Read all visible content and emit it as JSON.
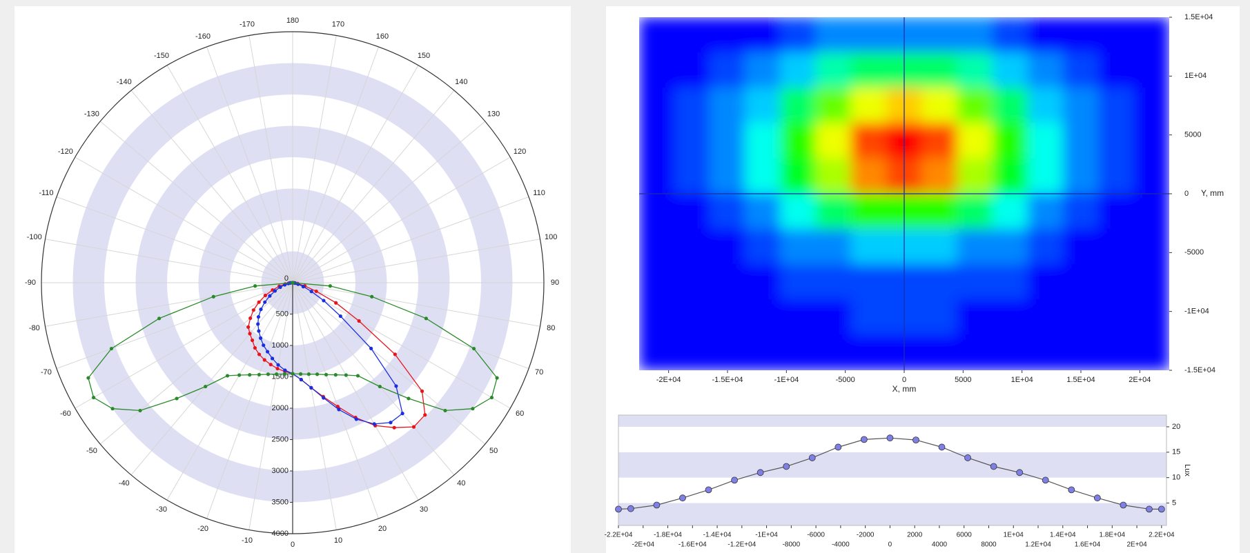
{
  "chart_data": [
    {
      "type": "polar",
      "x": [
        -90,
        -85,
        -80,
        -75,
        -70,
        -65,
        -60,
        -55,
        -50,
        -45,
        -40,
        -35,
        -30,
        -25,
        -20,
        -15,
        -10,
        -5,
        0,
        5,
        10,
        15,
        20,
        25,
        30,
        35,
        40,
        45,
        50,
        55,
        60,
        65,
        70,
        75,
        80,
        85,
        90
      ],
      "xticks": [
        -170,
        -160,
        -150,
        -140,
        -130,
        -120,
        -110,
        -100,
        -90,
        -80,
        -70,
        -60,
        -50,
        -40,
        -30,
        -20,
        -10,
        0,
        10,
        20,
        30,
        40,
        50,
        60,
        70,
        80,
        90,
        100,
        110,
        120,
        130,
        140,
        150,
        160,
        170,
        180
      ],
      "ylim": [
        0,
        4000
      ],
      "yticks": [
        0,
        500,
        1000,
        1500,
        2000,
        2500,
        3000,
        3500,
        4000
      ],
      "band_color": "#dedff3",
      "series": [
        {
          "color": "#e8141c",
          "values": [
            0,
            50,
            120,
            220,
            340,
            480,
            620,
            760,
            880,
            1000,
            1060,
            1120,
            1200,
            1260,
            1310,
            1350,
            1390,
            1420,
            1450,
            1550,
            1700,
            1880,
            2100,
            2370,
            2630,
            2820,
            3000,
            2980,
            2690,
            1990,
            1220,
            760,
            400,
            200,
            80,
            30,
            0
          ]
        },
        {
          "color": "#1a2ee0",
          "values": [
            0,
            30,
            70,
            130,
            210,
            310,
            420,
            540,
            660,
            770,
            860,
            940,
            1020,
            1100,
            1170,
            1250,
            1330,
            1400,
            1450,
            1550,
            1700,
            1900,
            2150,
            2400,
            2600,
            2720,
            2720,
            2330,
            1630,
            930,
            570,
            330,
            180,
            90,
            40,
            15,
            0
          ]
        },
        {
          "color": "#2a8a2a",
          "values": [
            0,
            600,
            1280,
            2200,
            3070,
            3590,
            3660,
            3500,
            3170,
            2610,
            2160,
            1810,
            1700,
            1620,
            1560,
            1510,
            1480,
            1460,
            1450,
            1460,
            1480,
            1510,
            1560,
            1620,
            1700,
            1810,
            2160,
            2610,
            3170,
            3500,
            3660,
            3590,
            3070,
            2200,
            1280,
            600,
            0
          ]
        }
      ]
    },
    {
      "type": "contour",
      "x": [
        -21000,
        -18000,
        -15000,
        -12000,
        -9000,
        -6000,
        -3000,
        0,
        3000,
        6000,
        9000,
        12000,
        15000,
        18000,
        21000
      ],
      "y": [
        13500,
        10500,
        7500,
        4500,
        1500,
        -1500,
        -4500,
        -7500,
        -10500,
        -13500
      ],
      "z": [
        [
          2.1,
          2.2,
          2.4,
          2.8,
          3.3,
          3.9,
          4.3,
          4.5,
          4.3,
          3.9,
          3.3,
          2.8,
          2.4,
          2.2,
          2.1
        ],
        [
          2.2,
          2.5,
          3.1,
          4.1,
          5.5,
          7.0,
          8.3,
          8.8,
          8.3,
          7.0,
          5.5,
          4.1,
          3.1,
          2.5,
          2.2
        ],
        [
          2.3,
          2.9,
          3.9,
          5.8,
          8.4,
          11.3,
          13.6,
          14.5,
          13.6,
          11.3,
          8.4,
          5.8,
          3.9,
          2.9,
          2.3
        ],
        [
          2.4,
          3.1,
          4.5,
          6.8,
          10.1,
          13.8,
          16.8,
          17.9,
          16.8,
          13.8,
          10.1,
          6.8,
          4.5,
          3.1,
          2.4
        ],
        [
          2.4,
          3.0,
          4.2,
          6.3,
          9.2,
          12.5,
          15.1,
          16.1,
          15.1,
          12.5,
          9.2,
          6.3,
          4.2,
          3.0,
          2.4
        ],
        [
          2.2,
          2.6,
          3.3,
          4.6,
          6.4,
          8.4,
          10.0,
          10.6,
          10.0,
          8.4,
          6.4,
          4.6,
          3.3,
          2.6,
          2.2
        ],
        [
          2.1,
          2.3,
          2.6,
          3.1,
          3.9,
          4.7,
          5.4,
          5.7,
          5.4,
          4.7,
          3.9,
          3.1,
          2.6,
          2.3,
          2.1
        ],
        [
          2.0,
          2.1,
          2.3,
          2.6,
          2.9,
          3.2,
          3.5,
          3.6,
          3.5,
          3.2,
          2.9,
          2.6,
          2.3,
          2.1,
          2.0
        ],
        [
          1.9,
          2.0,
          2.1,
          2.3,
          2.5,
          2.7,
          2.9,
          3.0,
          2.9,
          2.7,
          2.5,
          2.3,
          2.1,
          2.0,
          1.9
        ],
        [
          1.8,
          1.9,
          2.0,
          2.1,
          2.3,
          2.4,
          2.5,
          2.6,
          2.5,
          2.4,
          2.3,
          2.1,
          2.0,
          1.9,
          1.8
        ]
      ],
      "xlim": [
        -22500,
        22500
      ],
      "ylim": [
        -15000,
        15000
      ],
      "xticks": [
        {
          "value": -20000,
          "label": "-2E+04"
        },
        {
          "value": -15000,
          "label": "-1.5E+04"
        },
        {
          "value": -10000,
          "label": "-1E+04"
        },
        -5000,
        0,
        5000,
        {
          "value": 10000,
          "label": "1E+04"
        },
        {
          "value": 15000,
          "label": "1.5E+04"
        },
        {
          "value": 20000,
          "label": "2E+04"
        }
      ],
      "yticks": [
        {
          "value": 15000,
          "label": "1.5E+04"
        },
        {
          "value": 10000,
          "label": "1E+04"
        },
        5000,
        0,
        -5000,
        {
          "value": -10000,
          "label": "-1E+04"
        },
        {
          "value": -15000,
          "label": "-1.5E+04"
        }
      ],
      "xlabel": "X, mm",
      "ylabel": "Y, mm",
      "crosshair_color": "#1c2fa8"
    },
    {
      "type": "line",
      "x": [
        -22000,
        -21000,
        -18900,
        -16800,
        -14700,
        -12600,
        -10500,
        -8400,
        -6300,
        -4200,
        -2100,
        0,
        2100,
        4200,
        6300,
        8400,
        10500,
        12600,
        14700,
        16800,
        18900,
        21000,
        22000
      ],
      "values": [
        3.8,
        3.9,
        4.6,
        6.0,
        7.6,
        9.5,
        11.0,
        12.2,
        13.9,
        16.0,
        17.5,
        17.8,
        17.4,
        16.0,
        13.9,
        12.2,
        11.0,
        9.5,
        7.6,
        6.0,
        4.6,
        3.8,
        3.8
      ],
      "color": "#555555",
      "marker_color": "#7f80e6",
      "band_color": "#dedff3",
      "xlim": [
        -22000,
        22400
      ],
      "ylim": [
        0.6,
        22.3
      ],
      "xticks": [
        {
          "value": -22000,
          "label": "-2.2E+04"
        },
        {
          "value": -20000,
          "label": "-2E+04"
        },
        {
          "value": -18000,
          "label": "-1.8E+04"
        },
        {
          "value": -16000,
          "label": "-1.6E+04"
        },
        {
          "value": -14000,
          "label": "-1.4E+04"
        },
        {
          "value": -12000,
          "label": "-1.2E+04"
        },
        {
          "value": -10000,
          "label": "-1E+04"
        },
        -8000,
        -6000,
        -4000,
        -2000,
        0,
        2000,
        4000,
        6000,
        8000,
        {
          "value": 10000,
          "label": "1E+04"
        },
        {
          "value": 12000,
          "label": "1.2E+04"
        },
        {
          "value": 14000,
          "label": "1.4E+04"
        },
        {
          "value": 16000,
          "label": "1.6E+04"
        },
        {
          "value": 18000,
          "label": "1.8E+04"
        },
        {
          "value": 20000,
          "label": "2E+04"
        },
        {
          "value": 22000,
          "label": "2.2E+04"
        }
      ],
      "yticks": [
        5,
        10,
        15,
        20
      ],
      "ylabel": "Lux"
    }
  ]
}
